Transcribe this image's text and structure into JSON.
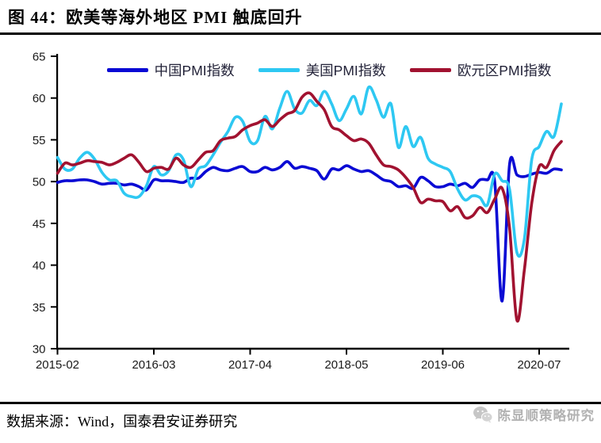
{
  "title": "图 44：欧美等海外地区 PMI 触底回升",
  "footer": {
    "source": "数据来源：Wind，国泰君安证券研究",
    "watermark": "陈显顺策略研究",
    "watermark_icon": "wechat-logo"
  },
  "colors": {
    "china_line": "#0A0AD4",
    "us_line": "#2EC8F2",
    "eurozone_line": "#A11230",
    "axis": "#000000",
    "watermark_gray": "#b2b2b2"
  },
  "chart_data": {
    "type": "line",
    "title": "图 44：欧美等海外地区 PMI 触底回升",
    "x_frequency": "monthly",
    "x_start": "2015-02",
    "x_end": "2020-10",
    "xlabel": "",
    "ylabel": "",
    "ylim": [
      30,
      65
    ],
    "y_ticks": [
      65,
      60,
      55,
      50,
      45,
      40,
      35,
      30
    ],
    "x_ticks": [
      {
        "label": "2015-02",
        "index": 0
      },
      {
        "label": "2016-03",
        "index": 13
      },
      {
        "label": "2017-04",
        "index": 26
      },
      {
        "label": "2018-05",
        "index": 39
      },
      {
        "label": "2019-06",
        "index": 52
      },
      {
        "label": "2020-07",
        "index": 65
      }
    ],
    "grid": false,
    "legend_position": "top-center",
    "series": [
      {
        "name": "中国PMI指数",
        "color": "#0A0AD4",
        "values": [
          49.9,
          50.1,
          50.1,
          50.2,
          50.2,
          50.0,
          49.7,
          49.8,
          49.8,
          49.6,
          49.7,
          49.4,
          49.0,
          50.2,
          50.1,
          50.1,
          50.0,
          49.9,
          50.4,
          50.4,
          51.2,
          51.7,
          51.4,
          51.3,
          51.6,
          51.8,
          51.2,
          51.2,
          51.7,
          51.4,
          51.7,
          52.4,
          51.6,
          51.8,
          51.6,
          51.3,
          50.3,
          51.5,
          51.4,
          51.9,
          51.5,
          51.2,
          51.3,
          50.8,
          50.2,
          50.0,
          49.4,
          49.5,
          49.2,
          50.5,
          50.1,
          49.4,
          49.4,
          49.7,
          49.5,
          49.8,
          49.3,
          50.2,
          50.2,
          50.0,
          35.7,
          52.0,
          50.8,
          50.6,
          50.9,
          51.1,
          51.0,
          51.5,
          51.4
        ]
      },
      {
        "name": "美国PMI指数",
        "color": "#2EC8F2",
        "values": [
          52.9,
          51.5,
          51.5,
          52.8,
          53.5,
          52.7,
          51.1,
          50.2,
          50.1,
          48.6,
          48.2,
          48.2,
          49.5,
          51.8,
          50.8,
          51.3,
          53.2,
          52.6,
          49.4,
          51.5,
          51.9,
          53.2,
          54.7,
          56.0,
          57.7,
          57.2,
          54.8,
          54.9,
          57.8,
          56.3,
          58.8,
          60.8,
          58.7,
          58.2,
          59.7,
          59.1,
          60.8,
          59.3,
          57.3,
          58.7,
          60.2,
          58.1,
          61.3,
          59.8,
          57.7,
          59.3,
          54.1,
          56.6,
          54.2,
          55.3,
          52.8,
          52.1,
          51.7,
          51.2,
          49.1,
          47.8,
          48.3,
          48.1,
          47.2,
          50.9,
          50.1,
          49.1,
          41.5,
          43.1,
          52.6,
          54.2,
          56.0,
          55.4,
          59.3
        ]
      },
      {
        "name": "欧元区PMI指数",
        "color": "#A11230",
        "values": [
          51.0,
          52.2,
          52.0,
          52.2,
          52.5,
          52.4,
          52.3,
          52.0,
          52.3,
          52.8,
          53.2,
          52.3,
          51.2,
          51.6,
          51.7,
          51.5,
          52.8,
          52.0,
          51.7,
          52.6,
          53.5,
          53.7,
          54.9,
          55.2,
          55.4,
          56.2,
          56.7,
          57.0,
          57.4,
          56.6,
          57.4,
          58.1,
          58.5,
          60.1,
          60.6,
          59.6,
          58.6,
          56.6,
          56.2,
          55.5,
          54.9,
          55.1,
          54.6,
          53.2,
          52.0,
          51.8,
          51.4,
          50.5,
          49.3,
          47.5,
          47.9,
          47.7,
          47.6,
          46.5,
          47.0,
          45.7,
          45.9,
          46.9,
          46.3,
          47.9,
          49.2,
          44.5,
          33.4,
          39.4,
          47.4,
          51.8,
          51.7,
          53.7,
          54.8
        ]
      }
    ]
  }
}
